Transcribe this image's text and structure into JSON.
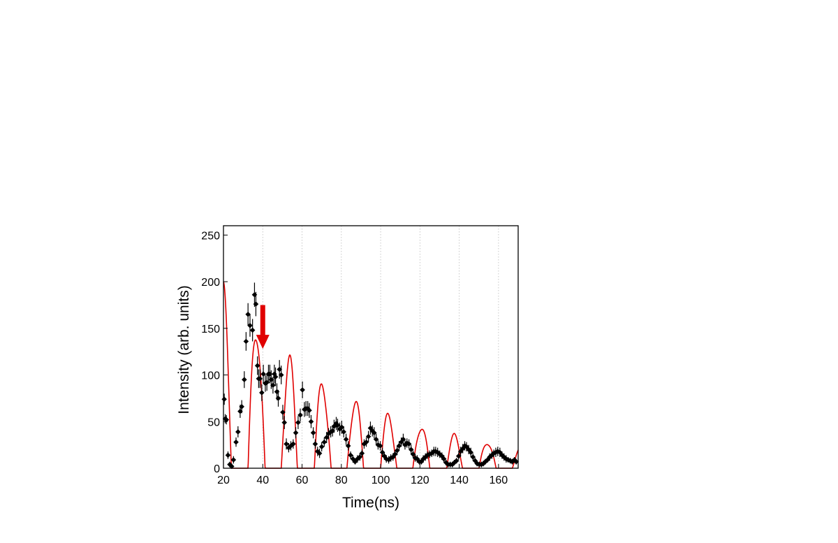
{
  "chart_data": {
    "type": "scatter",
    "title": "",
    "xlabel": "Time(ns)",
    "ylabel": "Intensity (arb. units)",
    "xlim": [
      20,
      170
    ],
    "ylim": [
      0,
      260
    ],
    "xticks": [
      20,
      40,
      60,
      80,
      100,
      120,
      140,
      160
    ],
    "yticks": [
      0,
      50,
      100,
      150,
      200,
      250
    ],
    "grid": "vertical dotted",
    "legend": "none",
    "colors": {
      "data": "#000000",
      "fit": "#e00000",
      "arrow": "#e00000",
      "grid": "#bbbbbb"
    },
    "annotation": {
      "type": "arrow",
      "direction": "down",
      "x": 40,
      "y_from": 175,
      "y_to": 128
    },
    "series": [
      {
        "kind": "points_with_errorbars",
        "points": [
          [
            20.4,
            74,
            6
          ],
          [
            20.9,
            53,
            5
          ],
          [
            21.5,
            52,
            5
          ],
          [
            22.3,
            14,
            4
          ],
          [
            23.2,
            4,
            3
          ],
          [
            24.2,
            2,
            3
          ],
          [
            25.1,
            9,
            4
          ],
          [
            26.4,
            28,
            5
          ],
          [
            27.4,
            39,
            6
          ],
          [
            28.5,
            61,
            7
          ],
          [
            29.3,
            66,
            7
          ],
          [
            30.6,
            95,
            9
          ],
          [
            31.5,
            136,
            10
          ],
          [
            32.5,
            165,
            12
          ],
          [
            33.5,
            153,
            12
          ],
          [
            34.8,
            148,
            12
          ],
          [
            35.8,
            186,
            13
          ],
          [
            36.5,
            176,
            13
          ],
          [
            37.3,
            110,
            10
          ],
          [
            37.9,
            96,
            10
          ],
          [
            38.6,
            96,
            10
          ],
          [
            39.5,
            81,
            9
          ],
          [
            40.3,
            101,
            10
          ],
          [
            41.3,
            91,
            9
          ],
          [
            42.1,
            92,
            9
          ],
          [
            42.9,
            101,
            10
          ],
          [
            43.6,
            101,
            10
          ],
          [
            44.3,
            95,
            10
          ],
          [
            45.2,
            89,
            9
          ],
          [
            45.9,
            101,
            10
          ],
          [
            46.5,
            98,
            10
          ],
          [
            47.2,
            82,
            9
          ],
          [
            47.9,
            75,
            9
          ],
          [
            48.5,
            106,
            10
          ],
          [
            49.4,
            100,
            10
          ],
          [
            50.2,
            60,
            8
          ],
          [
            51,
            49,
            7
          ],
          [
            52,
            26,
            6
          ],
          [
            53.2,
            22,
            5
          ],
          [
            54.3,
            24,
            5
          ],
          [
            55.5,
            26,
            5
          ],
          [
            56.8,
            38,
            6
          ],
          [
            58,
            49,
            7
          ],
          [
            59.1,
            57,
            7
          ],
          [
            60.2,
            84,
            9
          ],
          [
            61.2,
            63,
            8
          ],
          [
            62,
            64,
            8
          ],
          [
            62.9,
            64,
            8
          ],
          [
            63.7,
            62,
            8
          ],
          [
            64.6,
            50,
            7
          ],
          [
            65.7,
            38,
            6
          ],
          [
            66.7,
            26,
            5
          ],
          [
            67.9,
            18,
            5
          ],
          [
            68.9,
            16,
            5
          ],
          [
            70,
            23,
            5
          ],
          [
            71.3,
            28,
            5
          ],
          [
            72.5,
            33,
            6
          ],
          [
            73.5,
            37,
            6
          ],
          [
            74.6,
            39,
            6
          ],
          [
            75.5,
            40,
            6
          ],
          [
            76.3,
            45,
            7
          ],
          [
            77.4,
            48,
            7
          ],
          [
            78.1,
            46,
            7
          ],
          [
            79.2,
            42,
            7
          ],
          [
            80.2,
            44,
            7
          ],
          [
            81.2,
            39,
            6
          ],
          [
            82.4,
            31,
            6
          ],
          [
            83.5,
            24,
            5
          ],
          [
            84.7,
            14,
            4
          ],
          [
            85.9,
            10,
            4
          ],
          [
            87,
            7,
            3
          ],
          [
            88.2,
            10,
            4
          ],
          [
            89.4,
            12,
            4
          ],
          [
            90.5,
            16,
            4
          ],
          [
            91.6,
            26,
            5
          ],
          [
            92.7,
            28,
            5
          ],
          [
            93.8,
            34,
            6
          ],
          [
            94.8,
            43,
            7
          ],
          [
            95.8,
            40,
            6
          ],
          [
            96.7,
            38,
            6
          ],
          [
            97.7,
            31,
            6
          ],
          [
            98.7,
            25,
            5
          ],
          [
            99.8,
            24,
            5
          ],
          [
            100.9,
            17,
            5
          ],
          [
            101.9,
            13,
            4
          ],
          [
            102.9,
            10,
            4
          ],
          [
            104.1,
            9,
            4
          ],
          [
            105.2,
            11,
            4
          ],
          [
            106.3,
            12,
            4
          ],
          [
            107.3,
            15,
            4
          ],
          [
            108.4,
            19,
            5
          ],
          [
            109.4,
            24,
            5
          ],
          [
            110.5,
            28,
            5
          ],
          [
            111.5,
            31,
            6
          ],
          [
            112.4,
            25,
            5
          ],
          [
            113.4,
            27,
            5
          ],
          [
            114.4,
            26,
            5
          ],
          [
            115.5,
            20,
            5
          ],
          [
            116.5,
            15,
            4
          ],
          [
            117.6,
            11,
            4
          ],
          [
            118.6,
            10,
            4
          ],
          [
            119.7,
            7,
            3
          ],
          [
            120.7,
            7,
            3
          ],
          [
            121.7,
            10,
            4
          ],
          [
            122.8,
            12,
            4
          ],
          [
            123.8,
            14,
            4
          ],
          [
            124.9,
            15,
            4
          ],
          [
            126,
            16,
            4
          ],
          [
            127.1,
            18,
            5
          ],
          [
            128,
            18,
            5
          ],
          [
            129,
            17,
            5
          ],
          [
            130.1,
            15,
            4
          ],
          [
            131.2,
            13,
            4
          ],
          [
            132.2,
            10,
            4
          ],
          [
            133.3,
            6,
            3
          ],
          [
            134.3,
            4,
            3
          ],
          [
            135.4,
            4,
            3
          ],
          [
            136.5,
            4,
            3
          ],
          [
            137.5,
            6,
            3
          ],
          [
            138.6,
            8,
            3
          ],
          [
            139.7,
            13,
            4
          ],
          [
            140.7,
            18,
            5
          ],
          [
            141.8,
            21,
            5
          ],
          [
            142.8,
            24,
            5
          ],
          [
            143.7,
            23,
            5
          ],
          [
            144.8,
            20,
            5
          ],
          [
            145.9,
            17,
            5
          ],
          [
            147,
            12,
            4
          ],
          [
            148.1,
            8,
            3
          ],
          [
            149.1,
            5,
            3
          ],
          [
            150.2,
            4,
            3
          ],
          [
            151.3,
            4,
            3
          ],
          [
            152.3,
            5,
            3
          ],
          [
            153.3,
            7,
            3
          ],
          [
            154.4,
            9,
            3
          ],
          [
            155.5,
            12,
            4
          ],
          [
            156.6,
            14,
            4
          ],
          [
            157.6,
            16,
            4
          ],
          [
            158.6,
            17,
            5
          ],
          [
            159.6,
            18,
            5
          ],
          [
            160.7,
            17,
            5
          ],
          [
            161.8,
            14,
            4
          ],
          [
            162.8,
            12,
            4
          ],
          [
            163.9,
            10,
            4
          ],
          [
            164.9,
            9,
            3
          ],
          [
            166,
            8,
            3
          ],
          [
            167,
            7,
            3
          ],
          [
            168.1,
            9,
            3
          ],
          [
            169,
            7,
            3
          ]
        ]
      },
      {
        "kind": "fit_curve",
        "model": "sum of two damped cosines",
        "x_range": [
          20,
          170
        ],
        "components": [
          {
            "amplitude": 186,
            "decay_ns": 70,
            "period_ns": 16.8,
            "x0": 20
          },
          {
            "amplitude": 14,
            "decay_ns": 70,
            "period_ns": 6.9,
            "x0": 20
          }
        ],
        "offset": 0
      }
    ]
  }
}
